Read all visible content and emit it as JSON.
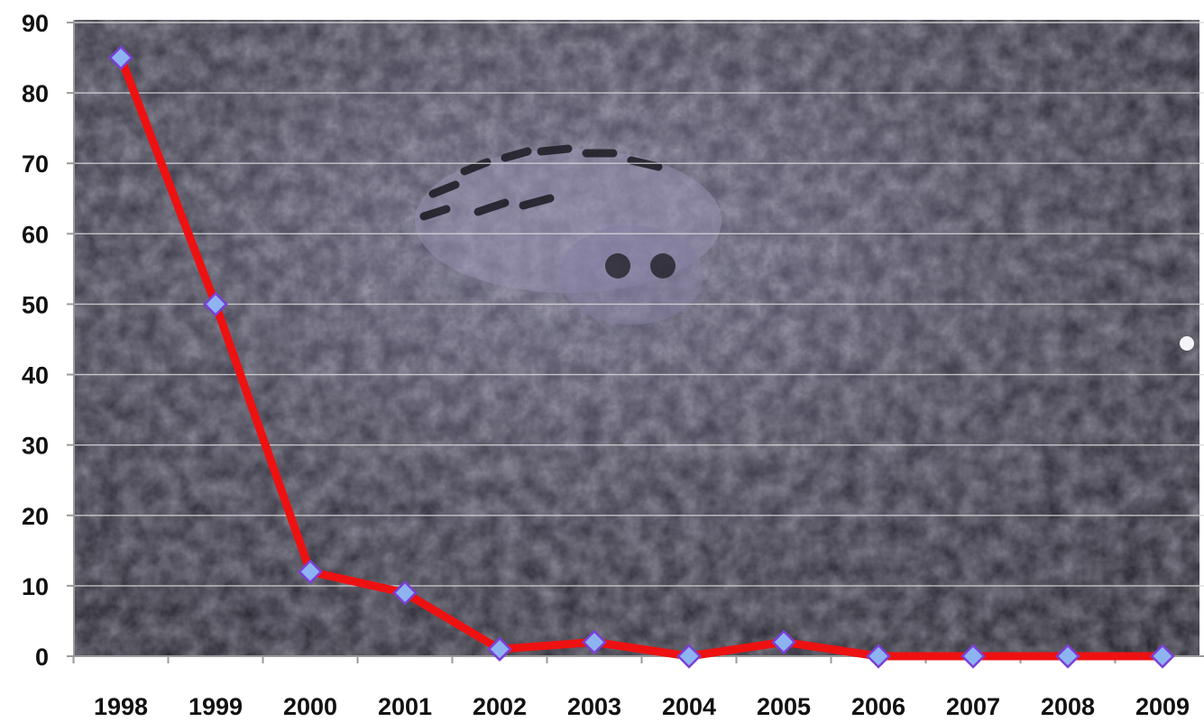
{
  "colors": {
    "line": "#ee1111",
    "marker_fill": "#8db4f0",
    "marker_stroke": "#7b3fd6",
    "gridline": "#d8d8d8",
    "axis": "#9a9a9a",
    "text": "#111111",
    "photo_dark": "#2c2b33",
    "photo_mid": "#4a4858",
    "photo_light": "#8d89a6"
  },
  "background": {
    "icon": "tiger-photo-background"
  },
  "chart_data": {
    "type": "line",
    "title": "",
    "xlabel": "",
    "ylabel": "",
    "categories": [
      "1998",
      "1999",
      "2000",
      "2001",
      "2002",
      "2003",
      "2004",
      "2005",
      "2006",
      "2007",
      "2008",
      "2009"
    ],
    "series": [
      {
        "values": [
          85,
          50,
          12,
          9,
          1,
          2,
          0,
          2,
          0,
          0,
          0,
          0
        ]
      }
    ],
    "ylim": [
      0,
      90
    ],
    "yticks": [
      "0",
      "10",
      "20",
      "30",
      "40",
      "50",
      "60",
      "70",
      "80",
      "90"
    ],
    "grid": true,
    "legend": "none",
    "marker": "diamond"
  }
}
